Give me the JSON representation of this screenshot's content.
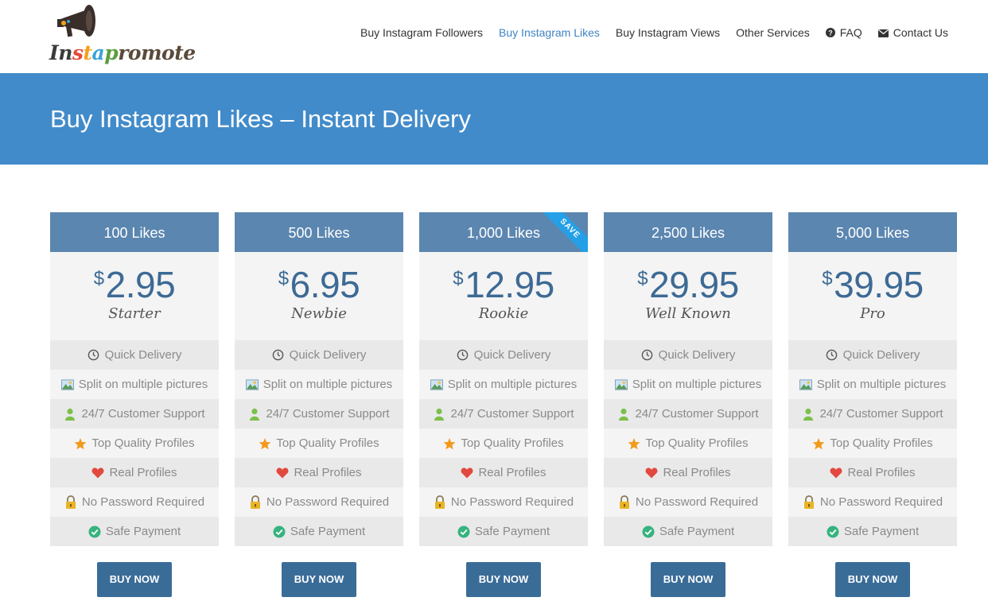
{
  "logo": {
    "letters": [
      "I",
      "n",
      "s",
      "t",
      "a",
      "p",
      "r",
      "o",
      "m",
      "o",
      "t",
      "e"
    ],
    "colors": [
      "#3b3b3b",
      "#3b3b3b",
      "#e24a3b",
      "#f2a11d",
      "#3aa3d8",
      "#5a9f3c",
      "#5a4a3a",
      "#5a4a3a",
      "#5a4a3a",
      "#5a4a3a",
      "#5a4a3a",
      "#5a4a3a"
    ],
    "icon": "megaphone-icon"
  },
  "nav": {
    "items": [
      {
        "label": "Buy Instagram Followers",
        "active": false
      },
      {
        "label": "Buy Instagram Likes",
        "active": true
      },
      {
        "label": "Buy Instagram Views",
        "active": false
      },
      {
        "label": "Other Services",
        "active": false
      },
      {
        "label": "FAQ",
        "icon": "question-circle-icon",
        "active": false
      },
      {
        "label": "Contact Us",
        "icon": "envelope-icon",
        "active": false
      }
    ]
  },
  "banner": {
    "title": "Buy Instagram Likes – Instant Delivery"
  },
  "colors": {
    "banner": "#428bca",
    "plan_header": "#5b86b0",
    "price": "#3d6a95",
    "button": "#3a6c98",
    "ribbon": "#25a0e6",
    "active_nav": "#3f84c4"
  },
  "features": [
    {
      "label": "Quick Delivery",
      "icon": "clock-icon"
    },
    {
      "label": "Split on multiple pictures",
      "icon": "pictures-icon"
    },
    {
      "label": "24/7 Customer Support",
      "icon": "user-icon"
    },
    {
      "label": "Top Quality Profiles",
      "icon": "star-icon"
    },
    {
      "label": "Real Profiles",
      "icon": "heart-icon"
    },
    {
      "label": "No Password Required",
      "icon": "lock-icon"
    },
    {
      "label": "Safe Payment",
      "icon": "check-circle-icon"
    }
  ],
  "plans": [
    {
      "title": "100 Likes",
      "currency": "$",
      "price": "2.95",
      "tier": "Starter",
      "button": "BUY NOW"
    },
    {
      "title": "500 Likes",
      "currency": "$",
      "price": "6.95",
      "tier": "Newbie",
      "button": "BUY NOW"
    },
    {
      "title": "1,000 Likes",
      "currency": "$",
      "price": "12.95",
      "tier": "Rookie",
      "button": "BUY NOW",
      "ribbon": "SAVE"
    },
    {
      "title": "2,500 Likes",
      "currency": "$",
      "price": "29.95",
      "tier": "Well Known",
      "button": "BUY NOW"
    },
    {
      "title": "5,000 Likes",
      "currency": "$",
      "price": "39.95",
      "tier": "Pro",
      "button": "BUY NOW"
    }
  ]
}
